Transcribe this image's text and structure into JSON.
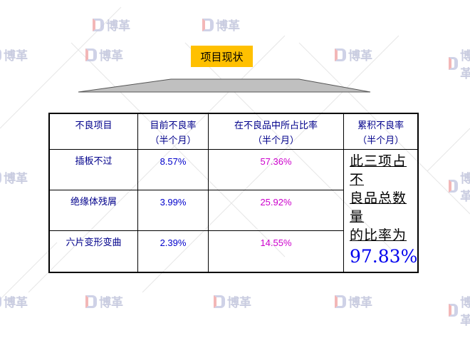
{
  "watermark": "博革",
  "title": "项目现状",
  "table": {
    "headers": [
      {
        "line1": "不良项目",
        "line2": ""
      },
      {
        "line1": "目前不良率",
        "line2": "（半个月）"
      },
      {
        "line1": "在不良品中所占比率",
        "line2": "（半个月）"
      },
      {
        "line1": "累积不良率",
        "line2": "（半个月）"
      }
    ],
    "rows": [
      {
        "item": "插板不过",
        "current_rate": "8.57%",
        "share": "57.36%"
      },
      {
        "item": "绝缘体残屑",
        "current_rate": "3.99%",
        "share": "25.92%"
      },
      {
        "item": "六片变形变曲",
        "current_rate": "2.39%",
        "share": "14.55%"
      }
    ],
    "summary": {
      "line1": "此三项占不",
      "line2": "良品总数量",
      "line3": "的比率为",
      "value": "97.83%"
    }
  },
  "colors": {
    "title_bg": "#ffc000",
    "rate": "#0000cc",
    "share": "#cc00cc",
    "summary_value": "#0000ee",
    "header_text": "#00008b"
  }
}
